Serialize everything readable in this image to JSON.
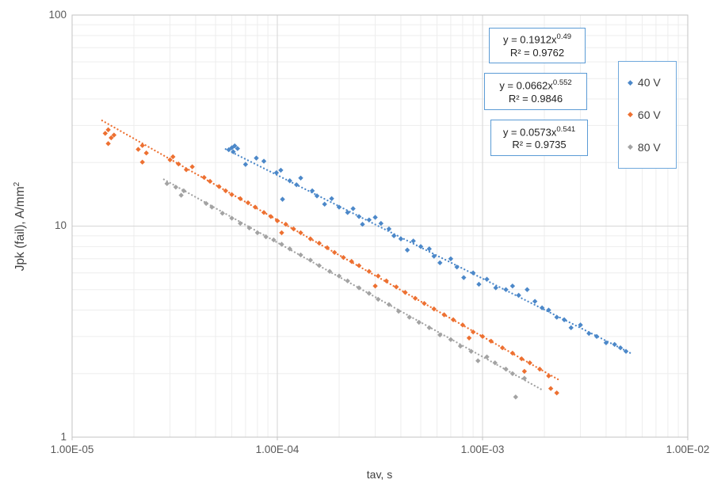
{
  "colors": {
    "frame_blue": "#5B9BD5",
    "legend_border": "#6FA8DC",
    "grid_minor": "#ededed",
    "grid_major": "#d6d6d6",
    "plot_border": "#c3c3c3",
    "tick_text": "#595959",
    "series_blue": "#4C88C9",
    "series_orange": "#ED7031",
    "series_gray": "#A3A3A3"
  },
  "equation_boxes": [
    {
      "prefix": "y = 0.1912x",
      "exponent": "0.49",
      "r2": "R² = 0.9762"
    },
    {
      "prefix": "y = 0.0662x",
      "exponent": "0.552",
      "r2": "R² = 0.9846"
    },
    {
      "prefix": "y = 0.0573x",
      "exponent": "0.541",
      "r2": "R² = 0.9735"
    }
  ],
  "legend": {
    "items": [
      {
        "label": "40 V",
        "marker": "diamond-icon",
        "color": "#4C88C9"
      },
      {
        "label": "60 V",
        "marker": "diamond-icon",
        "color": "#ED7031"
      },
      {
        "label": "80 V",
        "marker": "diamond-icon",
        "color": "#A3A3A3"
      }
    ]
  },
  "chart_data": {
    "type": "scatter",
    "title": "",
    "x_title": "tav, s",
    "y_title_main": "Jpk (fail),  A/mm",
    "y_title_sup": "2",
    "x_scale": "log",
    "y_scale": "log",
    "xlim": [
      1e-05,
      0.01
    ],
    "ylim": [
      1,
      100
    ],
    "grid": "major+minor",
    "legend_position": "right-top",
    "x_tick_labels": [
      "1.00E-05",
      "1.00E-04",
      "1.00E-03",
      "1.00E-02"
    ],
    "y_tick_labels": [
      "100",
      "10",
      "1"
    ],
    "series": [
      {
        "name": "40 V",
        "color": "#4C88C9",
        "marker": "diamond",
        "trend": {
          "label": "y = 0.1912x^0.49",
          "r2": 0.9762,
          "a": 0.1912,
          "b": -0.49,
          "x1": 5.6e-05,
          "x2": 0.0053,
          "style": "dotted"
        },
        "points": [
          [
            5.8e-05,
            23.0
          ],
          [
            6e-05,
            23.5
          ],
          [
            6.2e-05,
            24.0
          ],
          [
            6.4e-05,
            23.3
          ],
          [
            6.1e-05,
            22.5
          ],
          [
            7e-05,
            19.6
          ],
          [
            7.9e-05,
            21.0
          ],
          [
            8.6e-05,
            20.3
          ],
          [
            9.9e-05,
            17.9
          ],
          [
            0.000104,
            18.4
          ],
          [
            0.000106,
            13.4
          ],
          [
            0.000115,
            16.4
          ],
          [
            0.000124,
            15.7
          ],
          [
            0.00013,
            16.9
          ],
          [
            0.000148,
            14.7
          ],
          [
            0.000156,
            13.9
          ],
          [
            0.00017,
            12.7
          ],
          [
            0.000184,
            13.5
          ],
          [
            0.0002,
            12.3
          ],
          [
            0.00022,
            11.6
          ],
          [
            0.000234,
            12.1
          ],
          [
            0.00025,
            11.1
          ],
          [
            0.00026,
            10.2
          ],
          [
            0.00028,
            10.7
          ],
          [
            0.0003,
            11.0
          ],
          [
            0.00032,
            10.3
          ],
          [
            0.00035,
            9.7
          ],
          [
            0.00037,
            9.0
          ],
          [
            0.0004,
            8.7
          ],
          [
            0.00043,
            7.7
          ],
          [
            0.00046,
            8.5
          ],
          [
            0.0005,
            8.0
          ],
          [
            0.00055,
            7.8
          ],
          [
            0.00058,
            7.2
          ],
          [
            0.00062,
            6.7
          ],
          [
            0.0007,
            7.0
          ],
          [
            0.00075,
            6.4
          ],
          [
            0.00081,
            5.7
          ],
          [
            0.0009,
            6.0
          ],
          [
            0.00096,
            5.3
          ],
          [
            0.00105,
            5.6
          ],
          [
            0.00116,
            5.1
          ],
          [
            0.0013,
            5.0
          ],
          [
            0.0014,
            5.2
          ],
          [
            0.0015,
            4.7
          ],
          [
            0.00165,
            5.0
          ],
          [
            0.0018,
            4.4
          ],
          [
            0.00195,
            4.1
          ],
          [
            0.0021,
            4.0
          ],
          [
            0.0023,
            3.7
          ],
          [
            0.0025,
            3.6
          ],
          [
            0.0027,
            3.3
          ],
          [
            0.003,
            3.4
          ],
          [
            0.0033,
            3.1
          ],
          [
            0.0036,
            3.0
          ],
          [
            0.004,
            2.8
          ],
          [
            0.0044,
            2.75
          ],
          [
            0.0047,
            2.65
          ],
          [
            0.005,
            2.55
          ]
        ]
      },
      {
        "name": "60 V",
        "color": "#ED7031",
        "marker": "diamond",
        "trend": {
          "label": "y = 0.0662x^0.552",
          "r2": 0.9846,
          "a": 0.0662,
          "b": -0.552,
          "x1": 1.4e-05,
          "x2": 0.0024,
          "style": "dotted"
        },
        "points": [
          [
            1.45e-05,
            27.5
          ],
          [
            1.5e-05,
            28.6
          ],
          [
            1.55e-05,
            26.2
          ],
          [
            1.5e-05,
            24.6
          ],
          [
            1.6e-05,
            27.0
          ],
          [
            2.1e-05,
            23.1
          ],
          [
            2.2e-05,
            24.1
          ],
          [
            2.3e-05,
            22.2
          ],
          [
            2.2e-05,
            20.1
          ],
          [
            3e-05,
            20.6
          ],
          [
            3.1e-05,
            21.3
          ],
          [
            3.3e-05,
            19.7
          ],
          [
            3.6e-05,
            18.5
          ],
          [
            3.85e-05,
            19.1
          ],
          [
            4.4e-05,
            17.0
          ],
          [
            4.7e-05,
            16.3
          ],
          [
            5.2e-05,
            15.4
          ],
          [
            5.6e-05,
            14.7
          ],
          [
            6e-05,
            14.1
          ],
          [
            6.6e-05,
            13.5
          ],
          [
            7.2e-05,
            12.9
          ],
          [
            7.8e-05,
            12.3
          ],
          [
            8.6e-05,
            11.6
          ],
          [
            9.3e-05,
            11.1
          ],
          [
            0.0001,
            10.6
          ],
          [
            0.000105,
            9.3
          ],
          [
            0.00011,
            10.2
          ],
          [
            0.00012,
            9.7
          ],
          [
            0.00013,
            9.3
          ],
          [
            0.000145,
            8.7
          ],
          [
            0.00016,
            8.3
          ],
          [
            0.000175,
            7.9
          ],
          [
            0.00019,
            7.5
          ],
          [
            0.00021,
            7.1
          ],
          [
            0.00023,
            6.8
          ],
          [
            0.00025,
            6.5
          ],
          [
            0.00028,
            6.1
          ],
          [
            0.0003,
            5.2
          ],
          [
            0.00031,
            5.8
          ],
          [
            0.00034,
            5.5
          ],
          [
            0.00038,
            5.15
          ],
          [
            0.00042,
            4.85
          ],
          [
            0.00047,
            4.55
          ],
          [
            0.00052,
            4.3
          ],
          [
            0.00058,
            4.05
          ],
          [
            0.00065,
            3.8
          ],
          [
            0.00072,
            3.6
          ],
          [
            0.0008,
            3.4
          ],
          [
            0.00086,
            2.95
          ],
          [
            0.0009,
            3.15
          ],
          [
            0.001,
            3.0
          ],
          [
            0.0011,
            2.85
          ],
          [
            0.00125,
            2.65
          ],
          [
            0.0014,
            2.5
          ],
          [
            0.00155,
            2.35
          ],
          [
            0.0016,
            2.05
          ],
          [
            0.0017,
            2.25
          ],
          [
            0.0019,
            2.1
          ],
          [
            0.0021,
            1.95
          ],
          [
            0.00215,
            1.7
          ],
          [
            0.0023,
            1.62
          ]
        ]
      },
      {
        "name": "80 V",
        "color": "#A3A3A3",
        "marker": "diamond",
        "trend": {
          "label": "y = 0.0573x^0.541",
          "r2": 0.9735,
          "a": 0.0573,
          "b": -0.541,
          "x1": 2.8e-05,
          "x2": 0.00195,
          "style": "dotted"
        },
        "points": [
          [
            2.9e-05,
            15.9
          ],
          [
            3.2e-05,
            15.3
          ],
          [
            3.5e-05,
            14.7
          ],
          [
            3.4e-05,
            14.0
          ],
          [
            4.5e-05,
            12.8
          ],
          [
            4.8e-05,
            12.3
          ],
          [
            5.4e-05,
            11.5
          ],
          [
            6e-05,
            10.9
          ],
          [
            6.6e-05,
            10.3
          ],
          [
            7.3e-05,
            9.8
          ],
          [
            8e-05,
            9.3
          ],
          [
            8.8e-05,
            8.9
          ],
          [
            9.6e-05,
            8.6
          ],
          [
            0.000105,
            8.2
          ],
          [
            0.000115,
            7.8
          ],
          [
            0.00013,
            7.3
          ],
          [
            0.000145,
            6.9
          ],
          [
            0.00016,
            6.5
          ],
          [
            0.00018,
            6.1
          ],
          [
            0.0002,
            5.8
          ],
          [
            0.00022,
            5.5
          ],
          [
            0.00025,
            5.1
          ],
          [
            0.00028,
            4.8
          ],
          [
            0.00031,
            4.5
          ],
          [
            0.00035,
            4.25
          ],
          [
            0.00039,
            3.95
          ],
          [
            0.00044,
            3.7
          ],
          [
            0.00049,
            3.5
          ],
          [
            0.00055,
            3.3
          ],
          [
            0.00062,
            3.05
          ],
          [
            0.0007,
            2.9
          ],
          [
            0.00078,
            2.7
          ],
          [
            0.00088,
            2.55
          ],
          [
            0.00095,
            2.3
          ],
          [
            0.00105,
            2.4
          ],
          [
            0.00115,
            2.25
          ],
          [
            0.0013,
            2.1
          ],
          [
            0.0014,
            2.0
          ],
          [
            0.00145,
            1.55
          ],
          [
            0.0016,
            1.9
          ]
        ]
      }
    ]
  }
}
